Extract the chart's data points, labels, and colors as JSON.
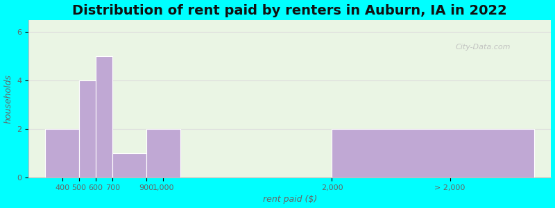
{
  "title": "Distribution of rent paid by renters in Auburn, IA in 2022",
  "xlabel": "rent paid ($)",
  "ylabel": "households",
  "bar_lefts": [
    300,
    500,
    600,
    700,
    900,
    2000
  ],
  "bar_rights": [
    500,
    600,
    700,
    900,
    1100,
    3200
  ],
  "bar_heights": [
    2,
    4,
    5,
    1,
    2,
    2
  ],
  "bar_color": "#c0a8d4",
  "bar_edgecolor": "#ffffff",
  "bg_color_plot": "#eaf5e4",
  "bg_color_fig": "#00ffff",
  "xtick_positions": [
    400,
    500,
    600,
    700,
    900,
    1000,
    2000,
    2700
  ],
  "xtick_labels": [
    "400",
    "500",
    "600",
    "700",
    "900",
    "1,000",
    "2,000",
    "> 2,000"
  ],
  "ytick_positions": [
    0,
    2,
    4,
    6
  ],
  "ylim": [
    0,
    6.5
  ],
  "xlim": [
    200,
    3300
  ],
  "title_fontsize": 14,
  "axis_label_fontsize": 9,
  "tick_fontsize": 8,
  "watermark_text": "City-Data.com",
  "grid_color": "#dddddd"
}
